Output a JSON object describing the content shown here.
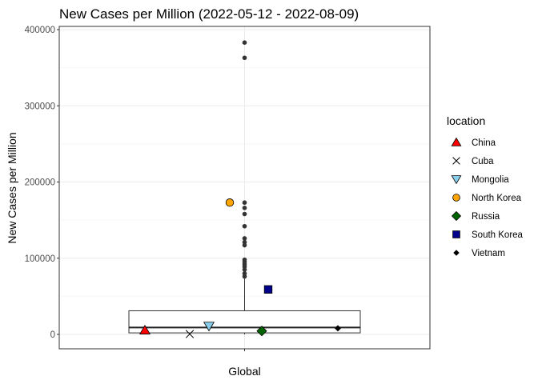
{
  "chart_data": {
    "type": "box",
    "title": "New Cases per Million (2022-05-12 - 2022-08-09)",
    "xlabel": "",
    "ylabel": "New Cases per Million",
    "categories": [
      "Global"
    ],
    "ylim": [
      -20000,
      405000
    ],
    "y_ticks": [
      0,
      100000,
      200000,
      300000,
      400000
    ],
    "grid": true,
    "legend_title": "location",
    "legend_position": "right",
    "box": {
      "category": "Global",
      "q1": 2000,
      "median": 9000,
      "q3": 31000,
      "whisker_low": 0,
      "whisker_high": 73000,
      "outliers": [
        383000,
        363000,
        173000,
        166000,
        158000,
        142000,
        126000,
        121000,
        117000,
        98000,
        95000,
        92000,
        89000,
        85000,
        80000,
        76000
      ]
    },
    "series": [
      {
        "name": "China",
        "value": 5500,
        "shape": "triangle-up",
        "color": "#ff0000"
      },
      {
        "name": "Cuba",
        "value": 500,
        "shape": "cross",
        "color": "#000000"
      },
      {
        "name": "Mongolia",
        "value": 11000,
        "shape": "triangle-down",
        "color": "#87ceeb"
      },
      {
        "name": "North Korea",
        "value": 173000,
        "shape": "circle",
        "color": "#ffa500"
      },
      {
        "name": "Russia",
        "value": 4500,
        "shape": "diamond",
        "color": "#006400"
      },
      {
        "name": "South Korea",
        "value": 59000,
        "shape": "square",
        "color": "#00008b"
      },
      {
        "name": "Vietnam",
        "value": 8000,
        "shape": "diamond-small",
        "color": "#000000"
      }
    ]
  }
}
